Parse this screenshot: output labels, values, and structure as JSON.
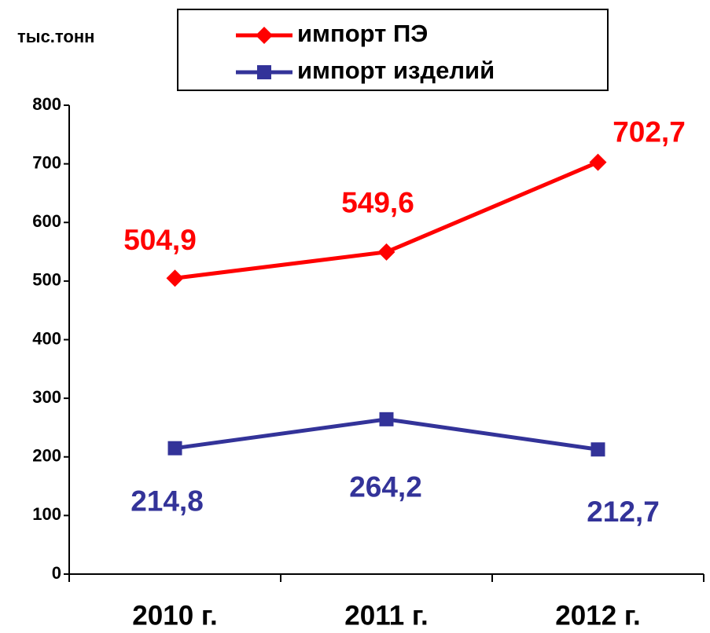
{
  "chart_data": {
    "type": "line",
    "y_label": "тыс.тонн",
    "categories": [
      "2010 г.",
      "2011 г.",
      "2012 г."
    ],
    "series": [
      {
        "name": "импорт ПЭ",
        "color": "#ff0000",
        "marker": "diamond",
        "values": [
          504.9,
          549.6,
          702.7
        ],
        "value_labels": [
          "504,9",
          "549,6",
          "702,7"
        ]
      },
      {
        "name": "импорт изделий",
        "color": "#333399",
        "marker": "square",
        "values": [
          214.8,
          264.2,
          212.7
        ],
        "value_labels": [
          "214,8",
          "264,2",
          "212,7"
        ]
      }
    ],
    "ylim": [
      0,
      800
    ],
    "yticks": [
      0,
      100,
      200,
      300,
      400,
      500,
      600,
      700,
      800
    ],
    "legend": "top",
    "grid": false
  }
}
